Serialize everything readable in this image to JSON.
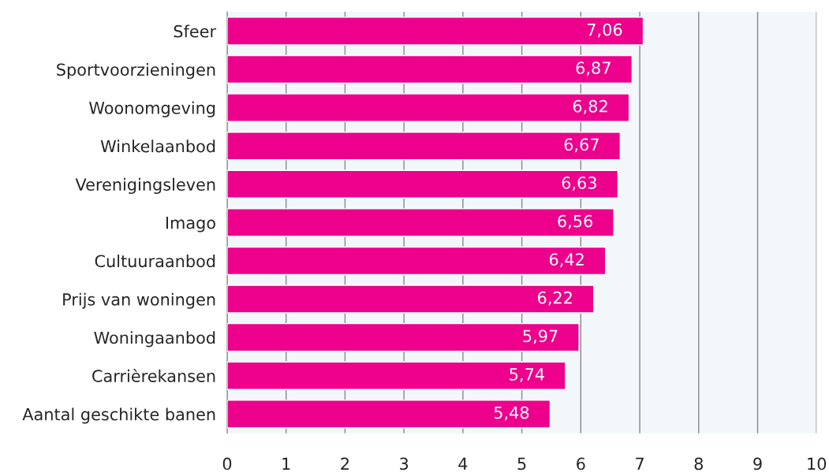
{
  "chart_data": {
    "type": "bar",
    "orientation": "horizontal",
    "categories": [
      "Sfeer",
      "Sportvoorzieningen",
      "Woonomgeving",
      "Winkelaanbod",
      "Verenigingsleven",
      "Imago",
      "Cultuuraanbod",
      "Prijs van woningen",
      "Woningaanbod",
      "Carrièrekansen",
      "Aantal geschikte banen"
    ],
    "values": [
      7.06,
      6.87,
      6.82,
      6.67,
      6.63,
      6.56,
      6.42,
      6.22,
      5.97,
      5.74,
      5.48
    ],
    "value_labels": [
      "7,06",
      "6,87",
      "6,82",
      "6,67",
      "6,63",
      "6,56",
      "6,42",
      "6,22",
      "5,97",
      "5,74",
      "5,48"
    ],
    "color": "#ec008c",
    "xlim": [
      0,
      10
    ],
    "xticks": [
      0,
      1,
      2,
      3,
      4,
      5,
      6,
      7,
      8,
      9,
      10
    ],
    "grid": "x"
  }
}
